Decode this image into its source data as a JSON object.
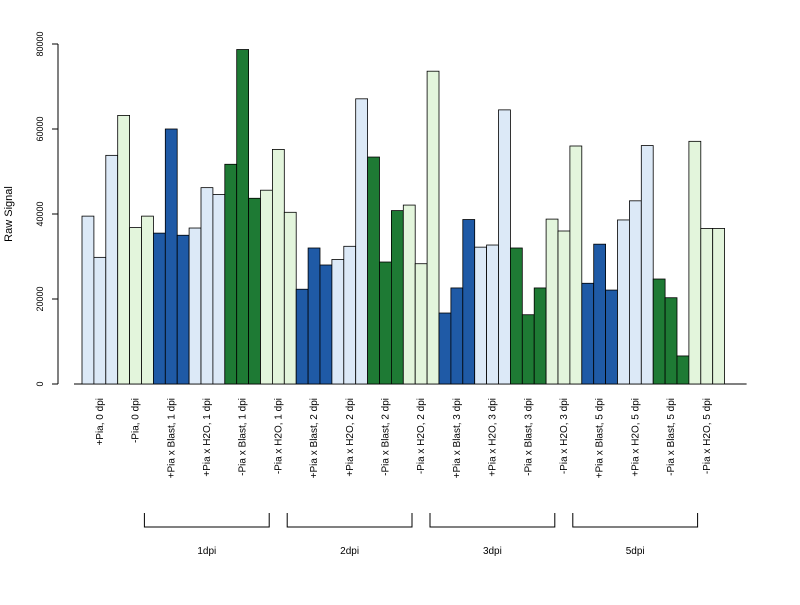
{
  "chart_data": {
    "type": "bar",
    "title": "",
    "xlabel": "",
    "ylabel": "Raw Signal",
    "ylim": [
      0,
      80000
    ],
    "yticks": [
      0,
      20000,
      40000,
      60000,
      80000
    ],
    "grid": false,
    "legend": "none",
    "colors": {
      "dark_blue": "#1f5aa6",
      "light_blue": "#dce9f7",
      "dark_green": "#1e7a34",
      "light_green": "#e3f5dc",
      "border": "#000000"
    },
    "groups": [
      {
        "label": "+Pia, 0 dpi",
        "color": "light_blue",
        "values": [
          39500,
          29800,
          53800
        ]
      },
      {
        "label": "-Pia, 0 dpi",
        "color": "light_green",
        "values": [
          63200,
          36800,
          39500
        ]
      },
      {
        "label": "+Pia x Blast, 1 dpi",
        "color": "dark_blue",
        "values": [
          35500,
          60000,
          35000
        ]
      },
      {
        "label": "+Pia x H2O, 1 dpi",
        "color": "light_blue",
        "values": [
          36700,
          46200,
          44600
        ]
      },
      {
        "label": "-Pia x Blast, 1 dpi",
        "color": "dark_green",
        "values": [
          51700,
          78700,
          43700
        ]
      },
      {
        "label": "-Pia x H2O, 1 dpi",
        "color": "light_green",
        "values": [
          45600,
          55200,
          40400
        ]
      },
      {
        "label": "+Pia x Blast, 2 dpi",
        "color": "dark_blue",
        "values": [
          22300,
          32000,
          28000
        ]
      },
      {
        "label": "+Pia x H2O, 2 dpi",
        "color": "light_blue",
        "values": [
          29300,
          32400,
          67100
        ]
      },
      {
        "label": "-Pia x Blast, 2 dpi",
        "color": "dark_green",
        "values": [
          53400,
          28700,
          40800
        ]
      },
      {
        "label": "-Pia x H2O, 2 dpi",
        "color": "light_green",
        "values": [
          42100,
          28300,
          73600
        ]
      },
      {
        "label": "+Pia x Blast, 3 dpi",
        "color": "dark_blue",
        "values": [
          16700,
          22600,
          38700
        ]
      },
      {
        "label": "+Pia x H2O, 3 dpi",
        "color": "light_blue",
        "values": [
          32200,
          32700,
          64500
        ]
      },
      {
        "label": "-Pia x Blast, 3 dpi",
        "color": "dark_green",
        "values": [
          32000,
          16300,
          22600
        ]
      },
      {
        "label": "-Pia x H2O, 3 dpi",
        "color": "light_green",
        "values": [
          38800,
          36000,
          56000
        ]
      },
      {
        "label": "+Pia x Blast, 5 dpi",
        "color": "dark_blue",
        "values": [
          23700,
          32900,
          22100
        ]
      },
      {
        "label": "+Pia x H2O, 5 dpi",
        "color": "light_blue",
        "values": [
          38600,
          43100,
          56100
        ]
      },
      {
        "label": "-Pia x Blast, 5 dpi",
        "color": "dark_green",
        "values": [
          24700,
          20300,
          6600
        ]
      },
      {
        "label": "-Pia x H2O, 5 dpi",
        "color": "light_green",
        "values": [
          57100,
          36600,
          36600
        ]
      }
    ],
    "brackets": [
      {
        "label": "1dpi",
        "from_group": 2,
        "to_group": 5
      },
      {
        "label": "2dpi",
        "from_group": 6,
        "to_group": 9
      },
      {
        "label": "3dpi",
        "from_group": 10,
        "to_group": 13
      },
      {
        "label": "5dpi",
        "from_group": 14,
        "to_group": 17
      }
    ]
  }
}
